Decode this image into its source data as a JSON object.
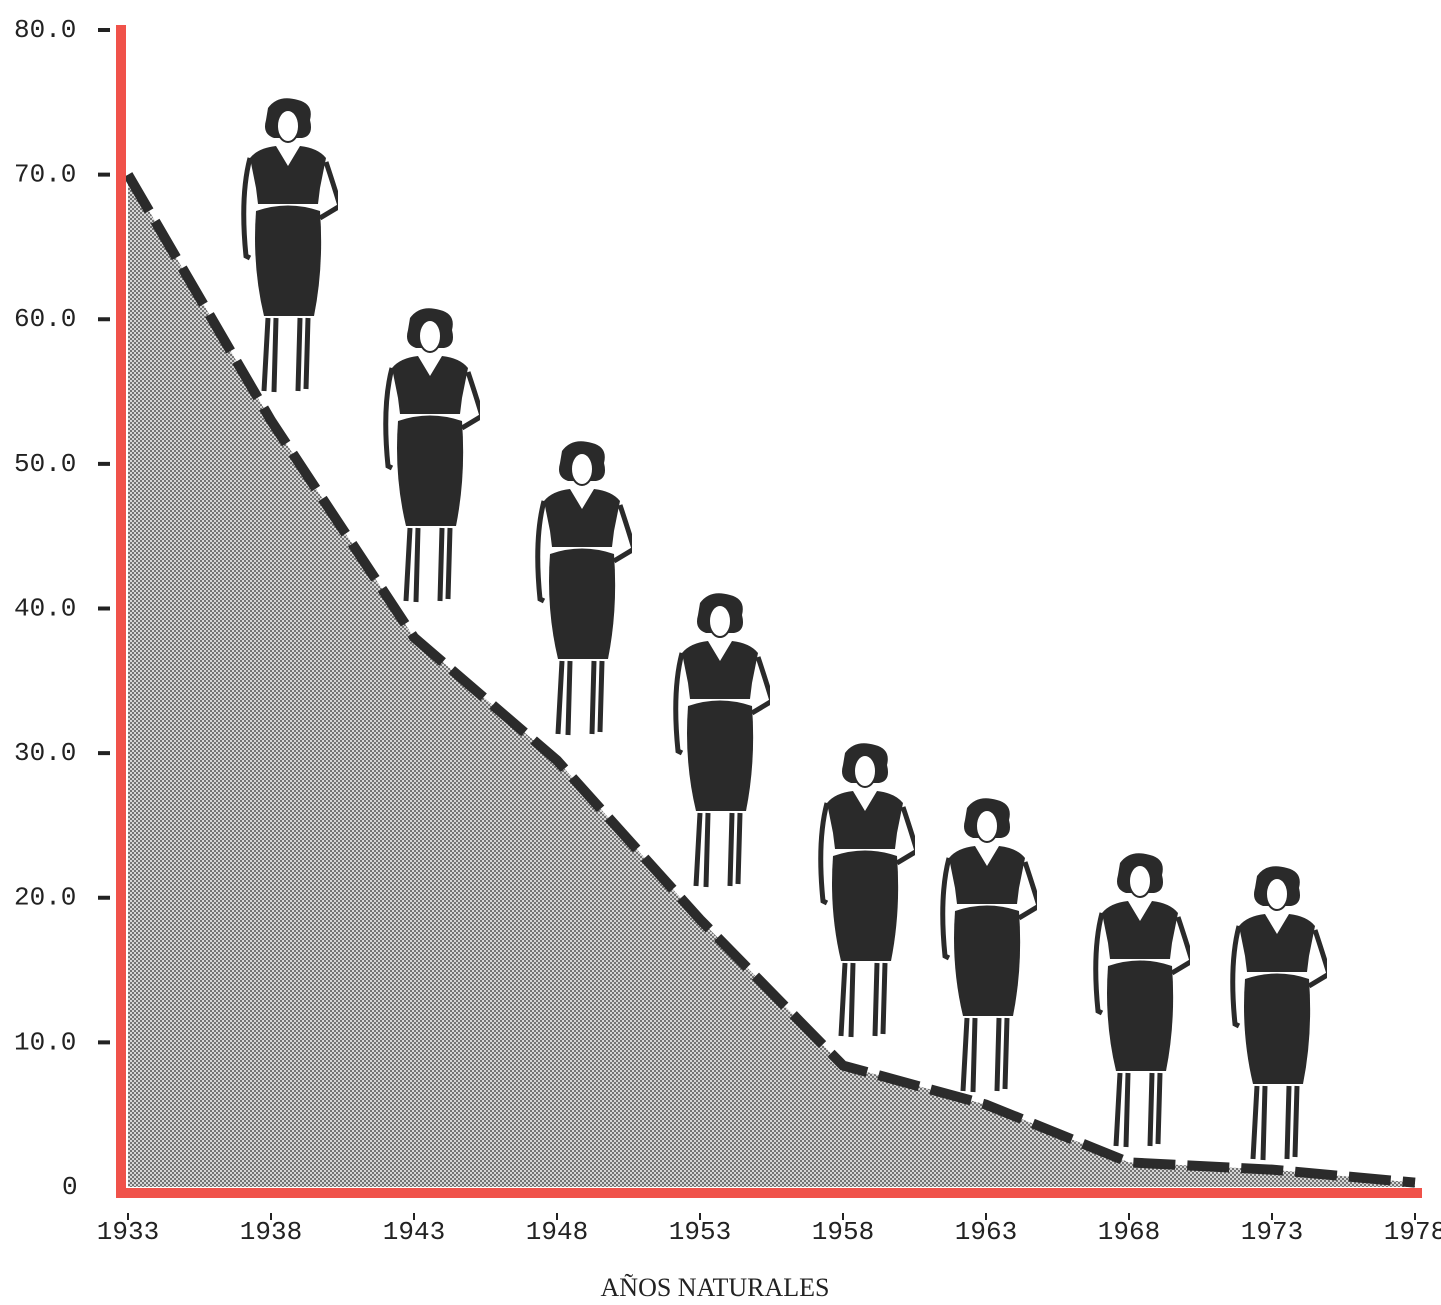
{
  "chart_data": {
    "type": "area",
    "x_label": "AÑOS NATURALES",
    "x": [
      1933,
      1938,
      1943,
      1948,
      1953,
      1958,
      1963,
      1968,
      1973,
      1978
    ],
    "values": [
      70,
      53,
      38,
      29.5,
      18.5,
      8.4,
      5.7,
      1.7,
      1.2,
      0.3
    ],
    "color": "#2b2b2b",
    "axis_color": "#f0524a",
    "xlim": [
      1933,
      1978
    ],
    "xticks": [
      1933,
      1938,
      1943,
      1948,
      1953,
      1958,
      1963,
      1968,
      1973,
      1978
    ],
    "ylim": [
      0,
      80
    ],
    "yticks": [
      0,
      {
        "value": 10,
        "label": "10.0"
      },
      {
        "value": 20,
        "label": "20.0"
      },
      {
        "value": 30,
        "label": "30.0"
      },
      {
        "value": 40,
        "label": "40.0"
      },
      {
        "value": 50,
        "label": "50.0"
      },
      {
        "value": 60,
        "label": "60.0"
      },
      {
        "value": 70,
        "label": "70.0"
      },
      {
        "value": 80,
        "label": "80.0"
      }
    ]
  }
}
